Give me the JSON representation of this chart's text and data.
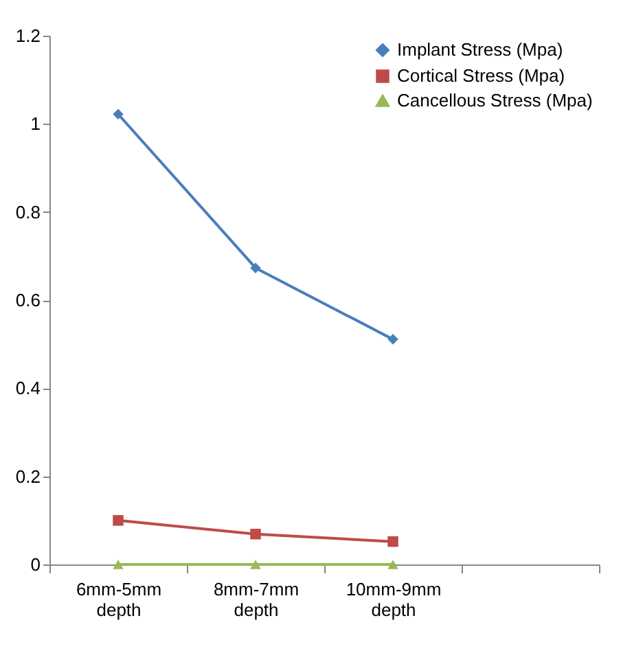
{
  "chart_data": {
    "type": "line",
    "categories": [
      "6mm-5mm depth",
      "8mm-7mm depth",
      "10mm-9mm depth",
      null
    ],
    "series": [
      {
        "name": "Implant Stress (Mpa)",
        "color": "#4a7ebb",
        "marker": "diamond",
        "values": [
          1.022,
          0.673,
          0.511,
          null
        ]
      },
      {
        "name": "Cortical Stress (Mpa)",
        "color": "#be4b48",
        "marker": "square",
        "values": [
          0.1,
          0.069,
          0.052,
          null
        ]
      },
      {
        "name": "Cancellous Stress (Mpa)",
        "color": "#98b954",
        "marker": "triangle",
        "values": [
          0,
          0,
          0,
          null
        ]
      }
    ],
    "ylim": [
      0,
      1.2
    ],
    "yticks": [
      0,
      0.2,
      0.4,
      0.6,
      0.8,
      1,
      1.2
    ],
    "xlabel": null,
    "grid": false,
    "legend": "top right",
    "line_style": "solid"
  }
}
